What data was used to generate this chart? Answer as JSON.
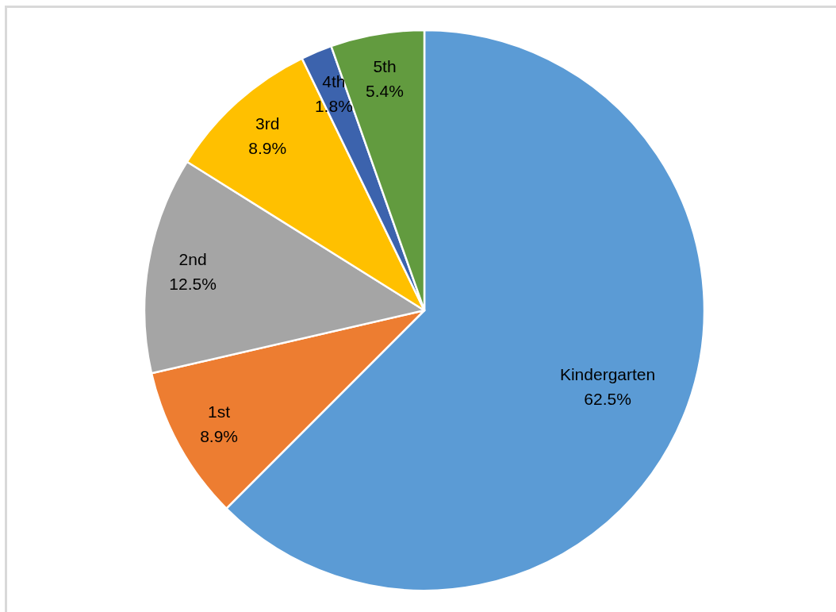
{
  "chart_data": {
    "type": "pie",
    "categories": [
      "Kindergarten",
      "1st",
      "2nd",
      "3rd",
      "4th",
      "5th"
    ],
    "values": [
      62.5,
      8.9,
      12.5,
      8.9,
      1.8,
      5.4
    ],
    "colors": [
      "#5b9bd5",
      "#ed7d31",
      "#a5a5a5",
      "#ffc000",
      "#3c63ad",
      "#629b3f"
    ],
    "value_labels": [
      "62.5%",
      "8.9%",
      "12.5%",
      "8.9%",
      "1.8%",
      "5.4%"
    ]
  }
}
